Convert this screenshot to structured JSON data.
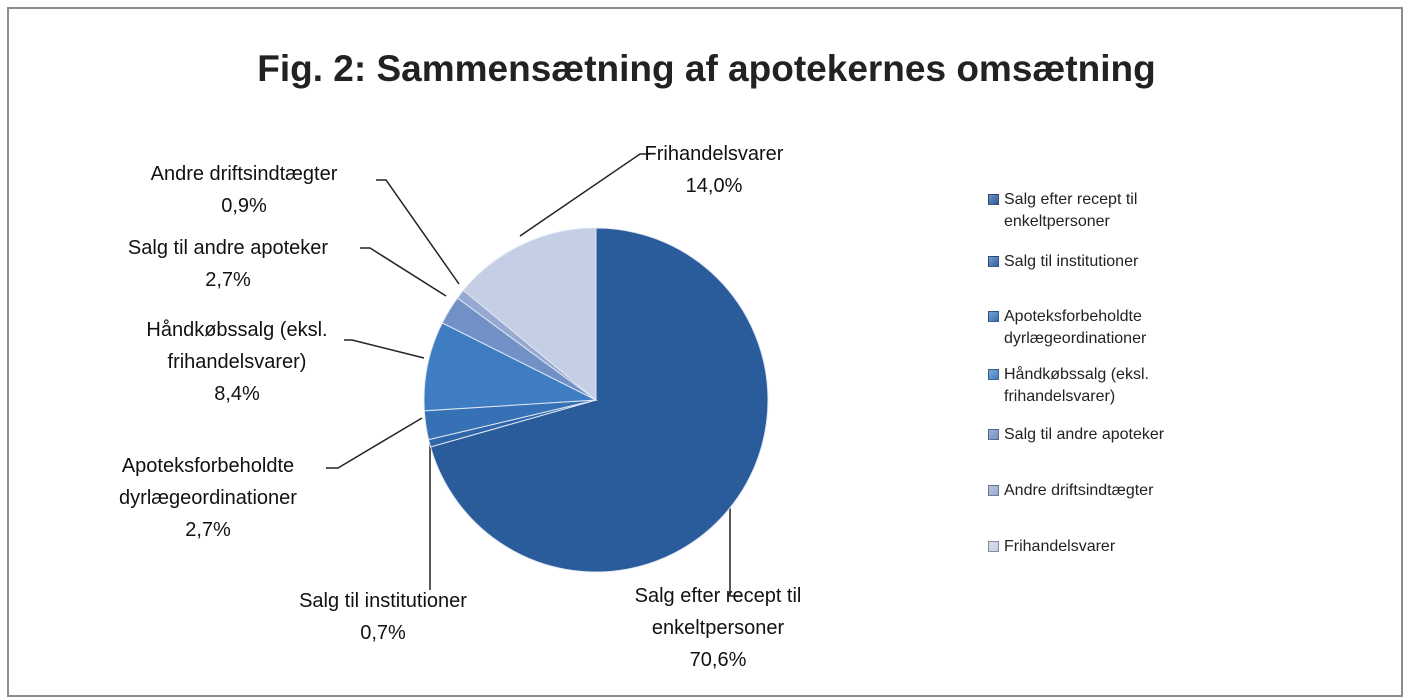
{
  "chart_data": {
    "type": "pie",
    "title": "Fig. 2: Sammensætning af apotekernes omsætning",
    "categories": [
      "Salg efter recept til enkeltpersoner",
      "Salg til institutioner",
      "Apoteksforbeholdte dyrlægeordinationer",
      "Håndkøbssalg (eksl. frihandelsvarer)",
      "Salg til andre apoteker",
      "Andre driftsindtægter",
      "Frihandelsvarer"
    ],
    "values": [
      70.6,
      0.7,
      2.7,
      8.4,
      2.7,
      0.9,
      14.0
    ],
    "value_labels": [
      "70,6%",
      "0,7%",
      "2,7%",
      "8,4%",
      "2,7%",
      "0,9%",
      "14,0%"
    ],
    "colors": [
      "#2a5c9c",
      "#2f66aa",
      "#3671b6",
      "#3f7dc3",
      "#7090c6",
      "#97a9d1",
      "#c4cee4"
    ],
    "legend": "right"
  }
}
